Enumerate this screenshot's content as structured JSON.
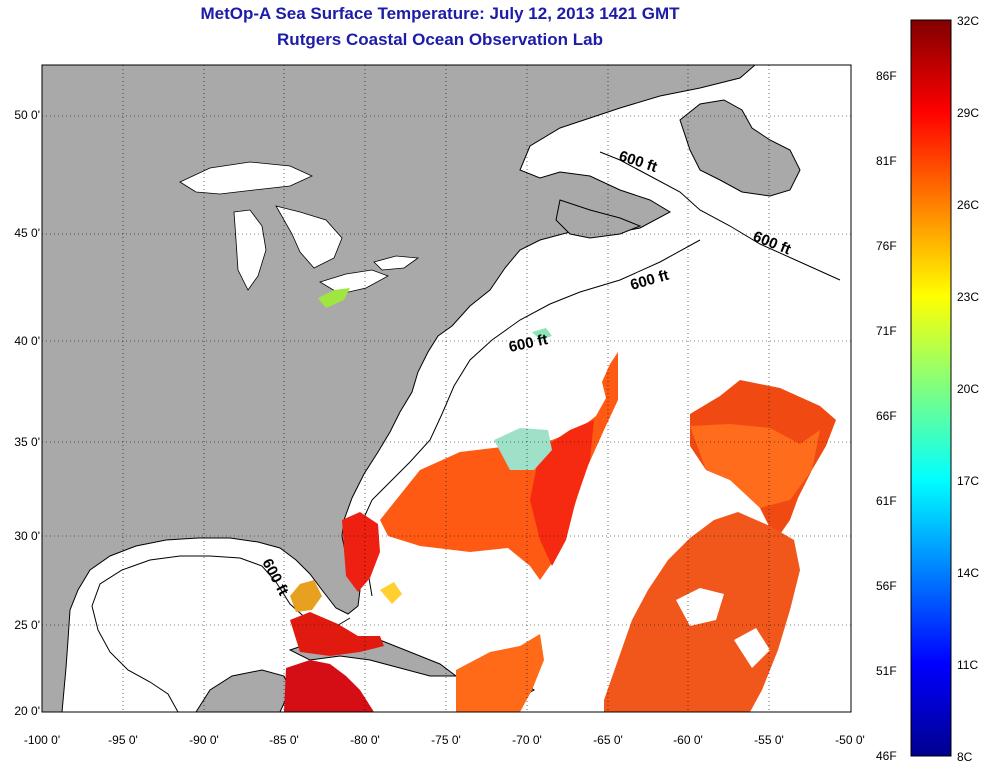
{
  "title_line1": "MetOp-A Sea Surface Temperature:  July 12, 2013 1421 GMT",
  "title_line2": "Rutgers Coastal Ocean Observation Lab",
  "map": {
    "lon_ticks": [
      "-100 0'",
      "-95 0'",
      "-90 0'",
      "-85 0'",
      "-80 0'",
      "-75 0'",
      "-70 0'",
      "-65 0'",
      "-60 0'",
      "-55 0'",
      "-50 0'"
    ],
    "lat_ticks": [
      "50 0'",
      "45 0'",
      "40 0'",
      "35 0'",
      "30 0'",
      "25 0'",
      "20 0'"
    ],
    "contour_label": "600 ft",
    "land_color": "#a9a9a9",
    "ocean_color": "#ffffff"
  },
  "colorbar": {
    "celsius_labels": [
      "32C",
      "29C",
      "26C",
      "23C",
      "20C",
      "17C",
      "14C",
      "11C",
      "8C"
    ],
    "fahrenheit_labels": [
      "86F",
      "81F",
      "76F",
      "71F",
      "66F",
      "61F",
      "56F",
      "51F",
      "46F"
    ],
    "colormap": [
      "#00008f",
      "#0000ff",
      "#00ffff",
      "#ffff00",
      "#ff8000",
      "#ff0000",
      "#800000"
    ]
  }
}
